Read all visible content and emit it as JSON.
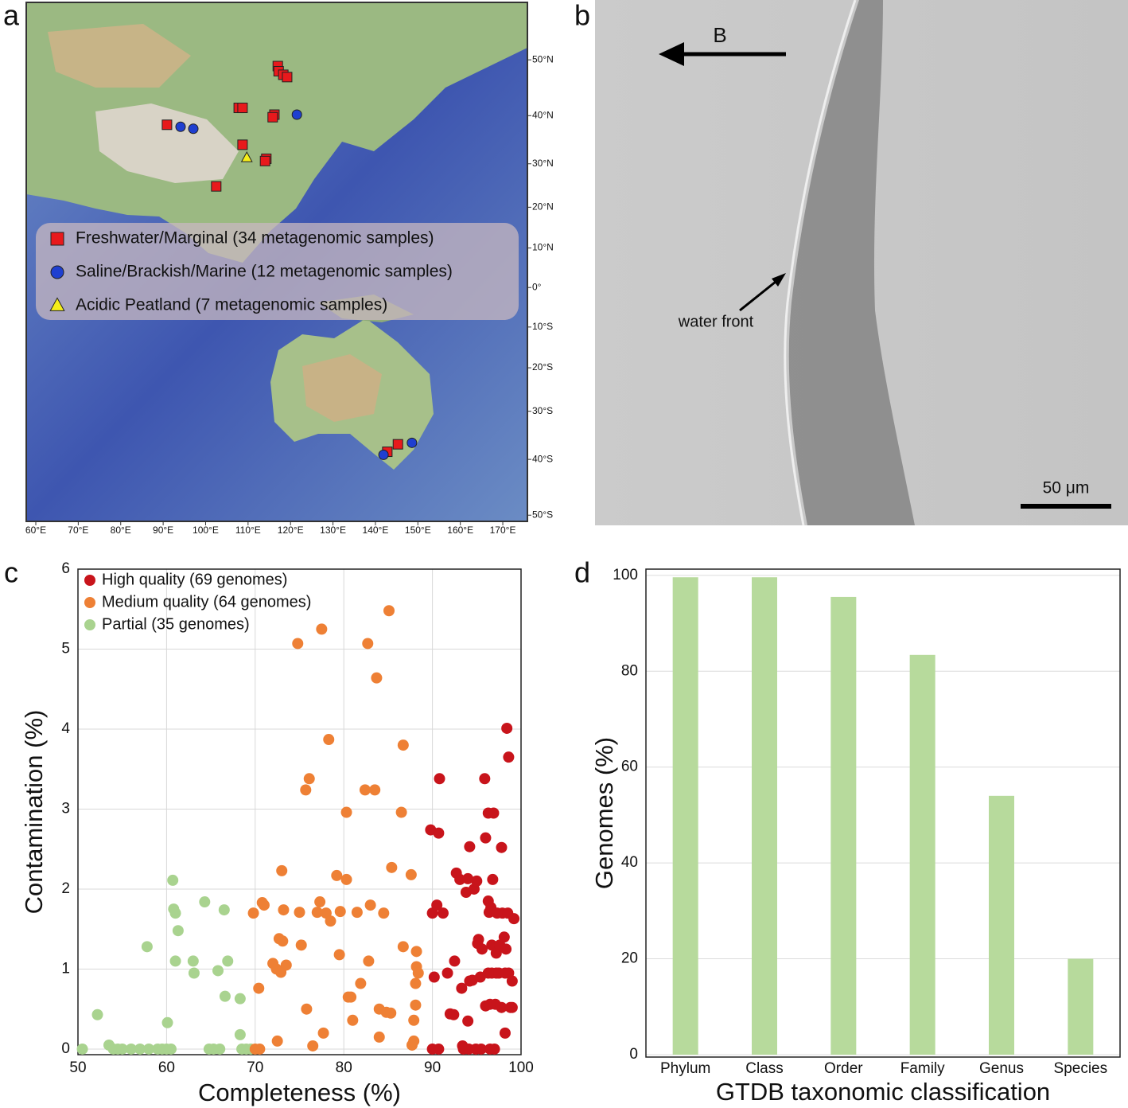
{
  "chart_data": [
    {
      "type": "map",
      "panel": "a",
      "projection": "mercator",
      "xlim": [
        57.75,
        175.8
      ],
      "ylim": [
        -51,
        58.5
      ],
      "xticks": [
        {
          "value": 60,
          "label": "60°E"
        },
        {
          "value": 70,
          "label": "70°E"
        },
        {
          "value": 80,
          "label": "80°E"
        },
        {
          "value": 90,
          "label": "90°E"
        },
        {
          "value": 100,
          "label": "100°E"
        },
        {
          "value": 110,
          "label": "110°E"
        },
        {
          "value": 120,
          "label": "120°E"
        },
        {
          "value": 130,
          "label": "130°E"
        },
        {
          "value": 140,
          "label": "140°E"
        },
        {
          "value": 150,
          "label": "150°E"
        },
        {
          "value": 160,
          "label": "160°E"
        },
        {
          "value": 170,
          "label": "170°E"
        }
      ],
      "yticks": [
        {
          "value": 50,
          "label": "50°N"
        },
        {
          "value": 40,
          "label": "40°N"
        },
        {
          "value": 30,
          "label": "30°N"
        },
        {
          "value": 20,
          "label": "20°N"
        },
        {
          "value": 10,
          "label": "10°N"
        },
        {
          "value": 0,
          "label": "0°"
        },
        {
          "value": -10,
          "label": "10°S"
        },
        {
          "value": -20,
          "label": "20°S"
        },
        {
          "value": -30,
          "label": "30°S"
        },
        {
          "value": -40,
          "label": "40°S"
        },
        {
          "value": -50,
          "label": "50°S"
        }
      ],
      "series": [
        {
          "name": "Freshwater/Marginal (34 metagenomic samples)",
          "color": "#e8191c",
          "marker": "square",
          "x": [
            117.0,
            117.2,
            118.3,
            119.2,
            107.8,
            108.7,
            116.2,
            115.8,
            90.9,
            108.7,
            114.3,
            114.0,
            102.5,
            142.8,
            145.3
          ],
          "values": [
            48.97,
            48.1,
            47.5,
            47.1,
            41.5,
            41.5,
            40.2,
            39.7,
            38.2,
            34.1,
            31.1,
            30.6,
            24.9,
            -38.5,
            -37.0
          ]
        },
        {
          "name": "Saline/Brackish/Marine (12 metagenomic samples)",
          "color": "#1f3fd0",
          "marker": "circle",
          "x": [
            94.1,
            97.1,
            121.5,
            141.9,
            148.6
          ],
          "values": [
            37.8,
            37.4,
            40.2,
            -39.1,
            -36.7
          ]
        },
        {
          "name": "Acidic Peatland (7 metagenomic samples)",
          "color": "#f5ee1a",
          "marker": "triangle",
          "x": [
            109.7
          ],
          "values": [
            31.3
          ]
        }
      ]
    },
    {
      "type": "image",
      "panel": "b",
      "annotations": [
        "B",
        "water front",
        "50 μm"
      ]
    },
    {
      "type": "scatter",
      "panel": "c",
      "xlabel": "Completeness (%)",
      "ylabel": "Contamination (%)",
      "xlim": [
        50,
        100
      ],
      "ylim": [
        -0.07,
        6
      ],
      "xticks": [
        50,
        60,
        70,
        80,
        90,
        100
      ],
      "yticks": [
        0,
        1,
        2,
        3,
        4,
        5,
        6
      ],
      "grid": true,
      "legend": "upper left",
      "series": [
        {
          "name": "High quality (69 genomes)",
          "color": "#c8141b",
          "x": [
            89.8,
            90,
            90,
            90.2,
            90.5,
            90.7,
            90.7,
            90.8,
            91.2,
            91.7,
            92,
            92.4,
            92.5,
            92.7,
            93.1,
            93.3,
            93.4,
            93.5,
            93.8,
            94,
            94,
            94.1,
            94.2,
            94.2,
            94.5,
            94.7,
            94.9,
            95,
            95.1,
            95.2,
            95.4,
            95.5,
            95.6,
            95.9,
            96,
            96,
            96.3,
            96.3,
            96.3,
            96.4,
            96.5,
            96.6,
            96.7,
            96.7,
            96.8,
            96.9,
            97,
            97.2,
            97.2,
            97.3,
            97.5,
            97.6,
            97.8,
            97.8,
            97.9,
            98.1,
            98.2,
            98.3,
            98.4,
            98.5,
            98.6,
            98.6,
            98.8,
            99,
            99,
            99.2,
            98.2,
            97.1,
            96.5
          ],
          "values": [
            2.74,
            1.7,
            0,
            0.9,
            1.8,
            0,
            2.7,
            3.38,
            1.7,
            0.95,
            0.44,
            0.43,
            1.1,
            2.2,
            2.12,
            0.76,
            0.04,
            0,
            1.96,
            2.13,
            0.35,
            0,
            0.85,
            2.53,
            0.86,
            2.0,
            0,
            2.1,
            1.32,
            1.37,
            0.9,
            0,
            1.25,
            3.38,
            2.64,
            0.54,
            1.85,
            2.95,
            0.95,
            1.71,
            0,
            1.77,
            0.95,
            1.3,
            2.12,
            2.95,
            0,
            0.95,
            1.2,
            1.7,
            0.95,
            1.3,
            2.52,
            0.52,
            1.7,
            1.4,
            0.95,
            1.25,
            4.01,
            1.7,
            3.65,
            0.95,
            0.52,
            0.85,
            0.52,
            1.63,
            0.2,
            0.56,
            0.56
          ]
        },
        {
          "name": "Medium quality (64 genomes)",
          "color": "#ee8035",
          "x": [
            69.8,
            70,
            70.4,
            70.5,
            70.8,
            71,
            72,
            72.4,
            72.5,
            72.7,
            72.9,
            73,
            73.1,
            73.2,
            73.5,
            74.8,
            75,
            75.2,
            75.7,
            75.8,
            76.1,
            76.5,
            77,
            77.3,
            77.5,
            77.7,
            78,
            78.3,
            78.5,
            79.2,
            79.5,
            79.6,
            80.3,
            80.3,
            80.5,
            80.8,
            81,
            81.5,
            81.9,
            82.4,
            82.7,
            82.8,
            83,
            83.5,
            83.7,
            84,
            84,
            84.5,
            84.8,
            85.1,
            85.3,
            85.4,
            86.5,
            86.7,
            86.7,
            87.6,
            87.9,
            88.1,
            88.1,
            88.2,
            88.2,
            88.4,
            87.7,
            87.9
          ],
          "values": [
            1.7,
            0,
            0.76,
            0,
            1.83,
            1.8,
            1.07,
            1.0,
            0.1,
            1.38,
            0.96,
            2.23,
            1.35,
            1.74,
            1.05,
            5.07,
            1.71,
            1.3,
            3.24,
            0.5,
            3.38,
            0.04,
            1.71,
            1.84,
            5.25,
            0.2,
            1.7,
            3.87,
            1.6,
            2.17,
            1.18,
            1.72,
            2.96,
            2.12,
            0.65,
            0.65,
            0.36,
            1.71,
            0.82,
            3.24,
            5.07,
            1.1,
            1.8,
            3.24,
            4.64,
            0.5,
            0.15,
            1.7,
            0.46,
            5.48,
            0.45,
            2.27,
            2.96,
            3.8,
            1.28,
            2.18,
            0.36,
            0.55,
            0.82,
            1.03,
            1.22,
            0.95,
            0.05,
            0.1
          ]
        },
        {
          "name": "Partial (35 genomes)",
          "color": "#a9d38f",
          "x": [
            50.5,
            52.2,
            53.5,
            54,
            54.5,
            55,
            56,
            57,
            58,
            57.8,
            59,
            59.5,
            60,
            60.5,
            60.1,
            60.7,
            60.8,
            61,
            61,
            61.3,
            63,
            63.1,
            64.3,
            64.8,
            65.3,
            65.8,
            66,
            66.5,
            66.6,
            66.9,
            68.3,
            68.3,
            68.5,
            69,
            69.5
          ],
          "values": [
            0,
            0.43,
            0.05,
            0,
            0,
            0,
            0,
            0,
            0,
            1.28,
            0,
            0,
            0,
            0,
            0.33,
            2.11,
            1.75,
            1.7,
            1.1,
            1.48,
            1.1,
            0.95,
            1.84,
            0,
            0,
            0.98,
            0,
            1.74,
            0.66,
            1.1,
            0.63,
            0.18,
            0,
            0,
            0
          ]
        }
      ]
    },
    {
      "type": "bar",
      "panel": "d",
      "xlabel": "GTDB taxonomic classification",
      "ylabel": "Genomes (%)",
      "categories": [
        "Phylum",
        "Class",
        "Order",
        "Family",
        "Genus",
        "Species"
      ],
      "values": [
        99.6,
        99.6,
        95.5,
        83.4,
        54.0,
        20.0
      ],
      "color": "#b7da9c",
      "ylim": [
        -0.5,
        101.3
      ],
      "yticks": [
        0,
        20,
        40,
        60,
        80,
        100
      ],
      "grid": true
    }
  ]
}
